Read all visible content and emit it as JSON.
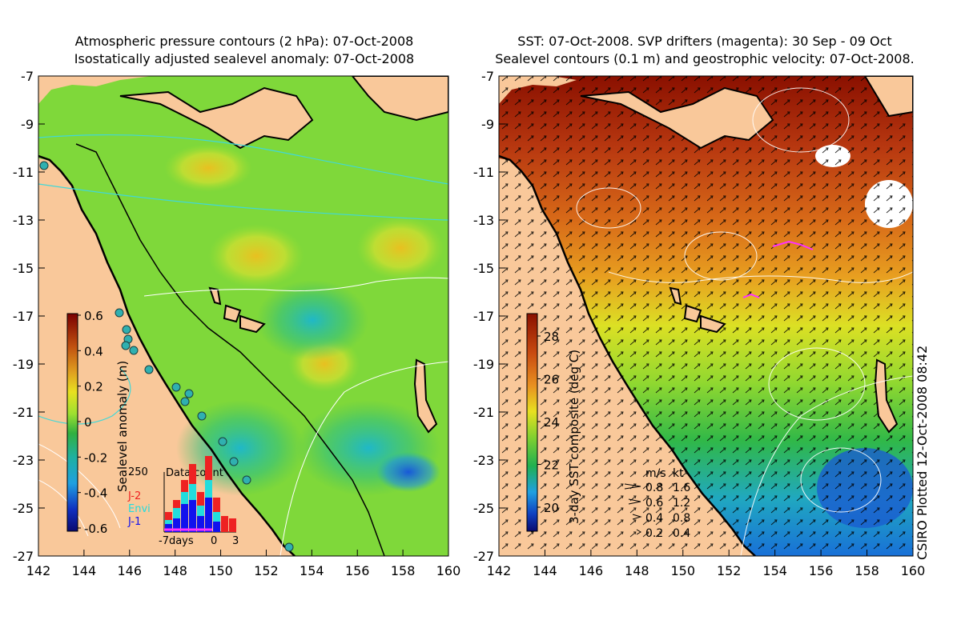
{
  "left_panel": {
    "title_line1": "Atmospheric pressure contours (2 hPa): 07-Oct-2008",
    "title_line2": "Isostatically adjusted sealevel anomaly: 07-Oct-2008",
    "colorbar": {
      "label": "Sealevel anomaly (m)",
      "ticks": [
        "0.6",
        "0.4",
        "0.2",
        "0",
        "-0.2",
        "-0.4",
        "-0.6"
      ]
    },
    "data_count": {
      "title": "Data count",
      "ymax_label": "250",
      "legend": [
        {
          "name": "J-2",
          "color": "#ee2222"
        },
        {
          "name": "Envi",
          "color": "#22dddd"
        },
        {
          "name": "J-1",
          "color": "#1111ee"
        }
      ],
      "x_labels": [
        "-7days",
        "0",
        "3"
      ]
    }
  },
  "right_panel": {
    "title_line1": "SST: 07-Oct-2008. SVP drifters (magenta): 30 Sep - 09 Oct",
    "title_line2": "Sealevel contours (0.1 m) and geostrophic velocity: 07-Oct-2008.",
    "colorbar": {
      "label": "3-day SST composite (deg C)",
      "ticks": [
        "28",
        "26",
        "24",
        "22",
        "20"
      ]
    },
    "velocity_legend": {
      "header_ms": "m/s",
      "header_kt": "kt",
      "rows": [
        {
          "ms": "0.8",
          "kt": "1.6"
        },
        {
          "ms": "0.6",
          "kt": "1.2"
        },
        {
          "ms": "0.4",
          "kt": "0.8"
        },
        {
          "ms": "0.2",
          "kt": "0.4"
        }
      ]
    }
  },
  "axes": {
    "y_ticks": [
      "-7",
      "-9",
      "-11",
      "-13",
      "-15",
      "-17",
      "-19",
      "-21",
      "-23",
      "-25",
      "-27"
    ],
    "x_ticks": [
      "142",
      "144",
      "146",
      "148",
      "150",
      "152",
      "154",
      "156",
      "158",
      "160"
    ]
  },
  "signature": "CSIRO Plotted 12-Oct-2008 08:42",
  "colors": {
    "land": "#f9c89a",
    "anomaly_green": "#7fd83a",
    "sst_warm": "#c84a10"
  }
}
